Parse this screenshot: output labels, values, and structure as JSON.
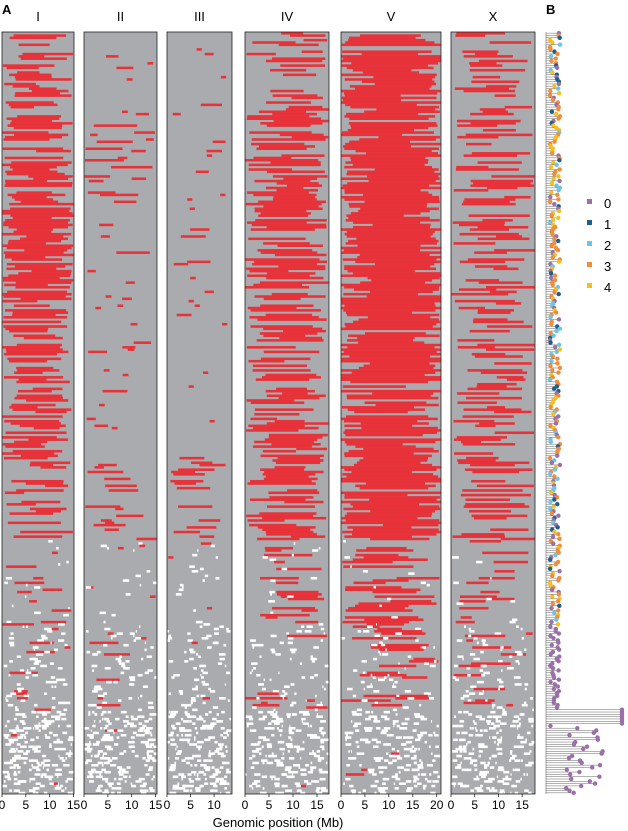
{
  "panel_labels": {
    "a": "A",
    "b": "B"
  },
  "chart_data": {
    "type": "heatmap",
    "description_free": true,
    "xlabel": "Genomic position (Mb)",
    "ylabel": "",
    "n_strains": 330,
    "colors": {
      "swept": "#e8323a",
      "not_swept": "#a9abae",
      "missing": "#ffffff"
    },
    "chromosomes": [
      {
        "name": "I",
        "length_mb": 15.1,
        "ticks": [
          0,
          5,
          10,
          15
        ],
        "tick_labels": [
          "0",
          "5",
          "10",
          "15"
        ],
        "swept_fraction_by_band": [
          0.55,
          0.7,
          0.75,
          0.72,
          0.6,
          0.5,
          0.2,
          0.25,
          0.05
        ]
      },
      {
        "name": "II",
        "length_mb": 15.3,
        "ticks": [
          0,
          5,
          10,
          15
        ],
        "tick_labels": [
          "0",
          "5",
          "10",
          "15"
        ],
        "swept_fraction_by_band": [
          0.1,
          0.35,
          0.25,
          0.12,
          0.1,
          0.3,
          0.08,
          0.15,
          0.02
        ]
      },
      {
        "name": "III",
        "length_mb": 13.8,
        "ticks": [
          0,
          5,
          10
        ],
        "tick_labels": [
          "0",
          "5",
          "10"
        ],
        "swept_fraction_by_band": [
          0.08,
          0.1,
          0.15,
          0.1,
          0.12,
          0.35,
          0.05,
          0.05,
          0.02
        ]
      },
      {
        "name": "IV",
        "length_mb": 17.5,
        "ticks": [
          0,
          5,
          10,
          15
        ],
        "tick_labels": [
          "0",
          "5",
          "10",
          "15"
        ],
        "swept_fraction_by_band": [
          0.5,
          0.65,
          0.7,
          0.6,
          0.55,
          0.6,
          0.35,
          0.25,
          0.03
        ]
      },
      {
        "name": "V",
        "length_mb": 20.9,
        "ticks": [
          0,
          5,
          10,
          15,
          20
        ],
        "tick_labels": [
          "0",
          "5",
          "10",
          "15",
          "20"
        ],
        "swept_fraction_by_band": [
          0.8,
          0.85,
          0.8,
          0.82,
          0.78,
          0.8,
          0.55,
          0.4,
          0.05
        ]
      },
      {
        "name": "X",
        "length_mb": 17.7,
        "ticks": [
          0,
          5,
          10,
          15
        ],
        "tick_labels": [
          "0",
          "5",
          "10",
          "15"
        ],
        "swept_fraction_by_band": [
          0.5,
          0.55,
          0.5,
          0.55,
          0.45,
          0.6,
          0.35,
          0.25,
          0.03
        ]
      }
    ],
    "missing_fraction_by_band": [
      0.01,
      0.01,
      0.01,
      0.02,
      0.02,
      0.03,
      0.05,
      0.12,
      0.3
    ],
    "legend": {
      "position": "right",
      "entries": [
        {
          "label": "0",
          "color": "#9b6fa8"
        },
        {
          "label": "1",
          "color": "#1f5f8b"
        },
        {
          "label": "2",
          "color": "#6cc5e8"
        },
        {
          "label": "3",
          "color": "#f08c3c"
        },
        {
          "label": "4",
          "color": "#f7bf1d"
        }
      ]
    }
  }
}
